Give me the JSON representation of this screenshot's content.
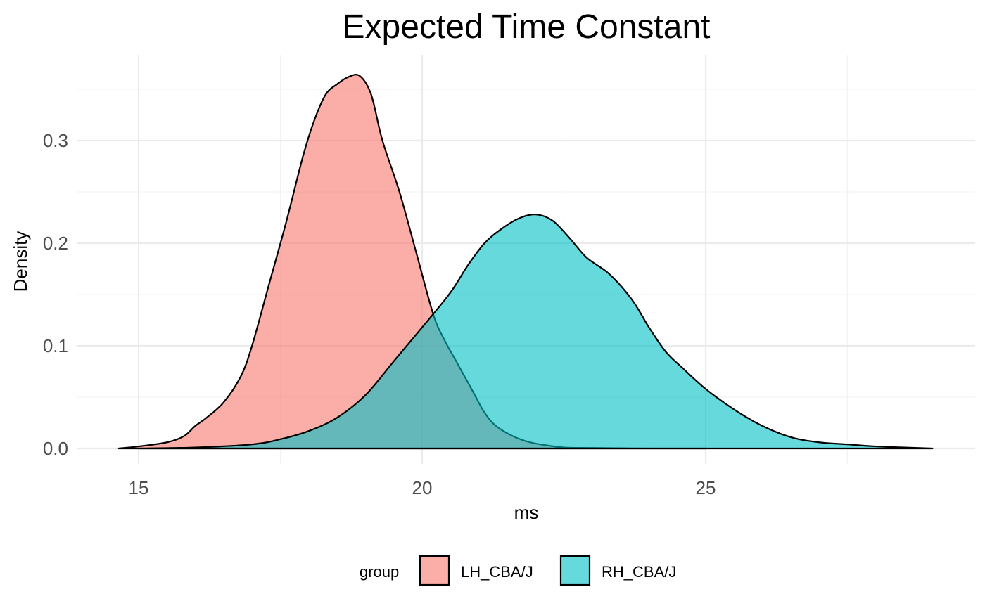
{
  "chart_data": {
    "type": "area",
    "title": "Expected Time Constant",
    "xlabel": "ms",
    "ylabel": "Density",
    "xlim": [
      14.6,
      29.0
    ],
    "ylim": [
      0,
      0.365
    ],
    "x_ticks": [
      15,
      20,
      25
    ],
    "x_tick_labels": [
      "15",
      "20",
      "25"
    ],
    "x_minor_ticks": [
      17.5,
      22.5,
      27.5
    ],
    "y_ticks": [
      0.0,
      0.1,
      0.2,
      0.3
    ],
    "y_tick_labels": [
      "0.0",
      "0.1",
      "0.2",
      "0.3"
    ],
    "y_minor_ticks": [
      0.05,
      0.15,
      0.25,
      0.35
    ],
    "grid": true,
    "legend": {
      "title": "group",
      "position": "bottom"
    },
    "series": [
      {
        "name": "LH_CBA/J",
        "color": "#F8766D",
        "opacity": 0.6,
        "x": [
          14.65,
          15.0,
          15.5,
          15.8,
          16.0,
          16.2,
          16.5,
          16.8,
          17.0,
          17.3,
          17.6,
          17.9,
          18.1,
          18.3,
          18.5,
          18.7,
          18.9,
          19.1,
          19.3,
          19.6,
          19.9,
          20.2,
          20.4,
          20.6,
          20.9,
          21.1,
          21.3,
          21.6,
          21.9,
          22.2,
          22.5,
          23.0,
          24.0,
          25.0
        ],
        "y": [
          0.0,
          0.002,
          0.006,
          0.012,
          0.022,
          0.03,
          0.045,
          0.07,
          0.1,
          0.16,
          0.22,
          0.285,
          0.32,
          0.345,
          0.355,
          0.362,
          0.363,
          0.345,
          0.3,
          0.25,
          0.19,
          0.13,
          0.105,
          0.085,
          0.055,
          0.035,
          0.022,
          0.012,
          0.006,
          0.003,
          0.001,
          0.0005,
          0.0,
          0.0
        ]
      },
      {
        "name": "RH_CBA/J",
        "color": "#00BFC4",
        "opacity": 0.6,
        "x": [
          15.0,
          16.0,
          17.0,
          17.5,
          18.0,
          18.5,
          19.0,
          19.5,
          20.0,
          20.5,
          20.8,
          21.1,
          21.4,
          21.7,
          22.0,
          22.3,
          22.6,
          22.9,
          23.3,
          23.7,
          24.0,
          24.3,
          24.6,
          25.0,
          25.5,
          26.0,
          26.5,
          27.0,
          27.5,
          28.0,
          29.0
        ],
        "y": [
          0.0,
          0.001,
          0.004,
          0.009,
          0.017,
          0.03,
          0.052,
          0.085,
          0.118,
          0.152,
          0.178,
          0.2,
          0.214,
          0.224,
          0.228,
          0.222,
          0.205,
          0.186,
          0.17,
          0.145,
          0.118,
          0.094,
          0.078,
          0.058,
          0.038,
          0.022,
          0.011,
          0.006,
          0.004,
          0.002,
          0.0
        ]
      }
    ]
  }
}
